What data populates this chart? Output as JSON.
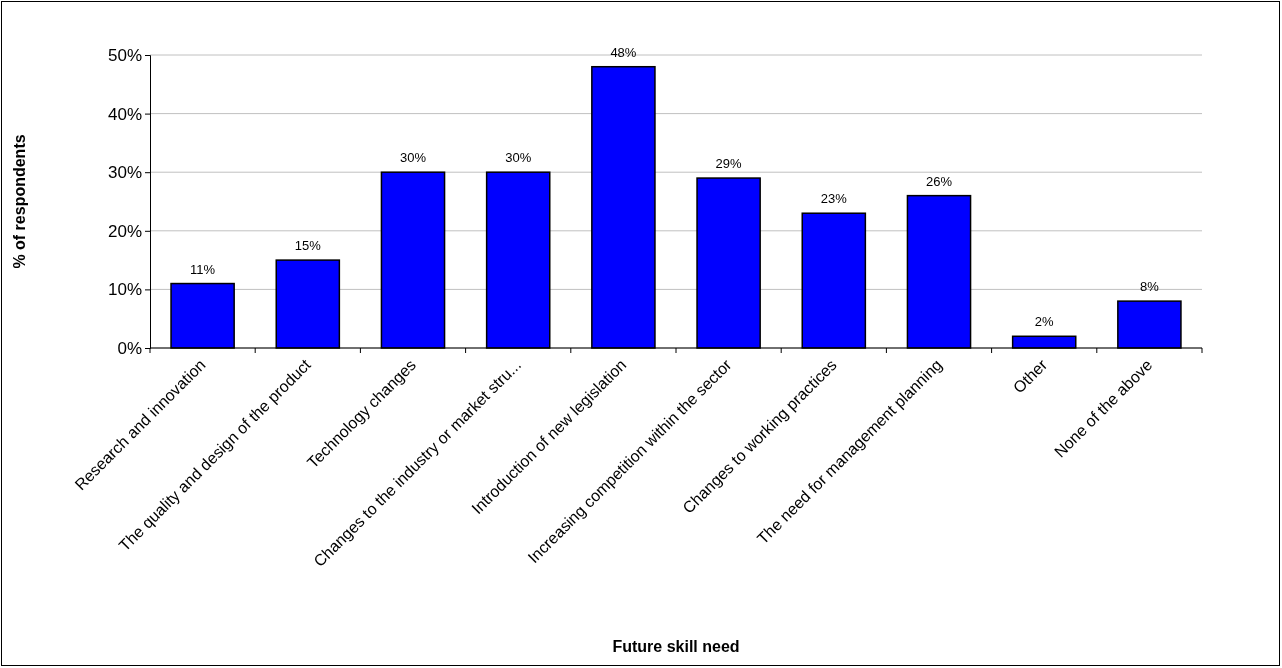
{
  "chart_data": {
    "type": "bar",
    "xlabel": "Future skill need",
    "ylabel": "% of respondents",
    "categories": [
      "Research and innovation",
      "The quality and design of the product",
      "Technology changes",
      "Changes to the industry or market stru...",
      "Introduction of new legislation",
      "Increasing competition within the sector",
      "Changes to working practices",
      "The need for management planning",
      "Other",
      "None of the above"
    ],
    "values": [
      11,
      15,
      30,
      30,
      48,
      29,
      23,
      26,
      2,
      8
    ],
    "color": "#0000ff",
    "ylim": [
      0,
      50
    ],
    "yticks": [
      {
        "value": 0,
        "label": "0%"
      },
      {
        "value": 10,
        "label": "10%"
      },
      {
        "value": 20,
        "label": "20%"
      },
      {
        "value": 30,
        "label": "30%"
      },
      {
        "value": 40,
        "label": "40%"
      },
      {
        "value": 50,
        "label": "50%"
      }
    ],
    "value_labels": [
      "11%",
      "15%",
      "30%",
      "30%",
      "48%",
      "29%",
      "23%",
      "26%",
      "2%",
      "8%"
    ],
    "grid": "y"
  }
}
